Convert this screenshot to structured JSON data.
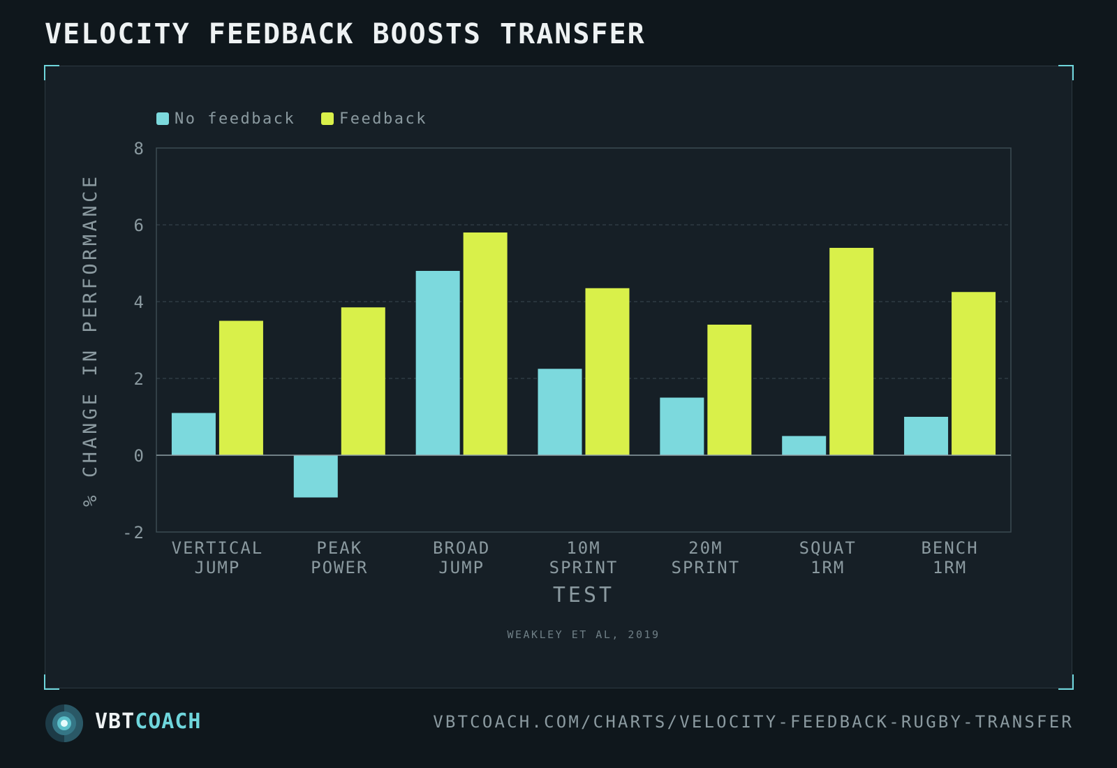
{
  "title": "VELOCITY FEEDBACK BOOSTS TRANSFER",
  "source": "WEAKLEY ET AL, 2019",
  "brand": {
    "part1": "VBT",
    "part2": "COACH"
  },
  "url": "VBTCOACH.COM/CHARTS/VELOCITY-FEEDBACK-RUGBY-TRANSFER",
  "colors": {
    "background": "#0f171c",
    "panel": "#161f26",
    "accent": "#6fd6dc",
    "no_feedback": "#7cd9dd",
    "feedback": "#d9f04a"
  },
  "chart_data": {
    "type": "bar",
    "title": "VELOCITY FEEDBACK BOOSTS TRANSFER",
    "xlabel": "TEST",
    "ylabel": "% CHANGE IN PERFORMANCE",
    "categories": [
      [
        "VERTICAL",
        "JUMP"
      ],
      [
        "PEAK",
        "POWER"
      ],
      [
        "BROAD",
        "JUMP"
      ],
      [
        "10M",
        "SPRINT"
      ],
      [
        "20M",
        "SPRINT"
      ],
      [
        "SQUAT",
        "1RM"
      ],
      [
        "BENCH",
        "1RM"
      ]
    ],
    "series": [
      {
        "name": "No feedback",
        "color": "#7cd9dd",
        "values": [
          1.1,
          -1.1,
          4.8,
          2.25,
          1.5,
          0.5,
          1.0
        ]
      },
      {
        "name": "Feedback",
        "color": "#d9f04a",
        "values": [
          3.5,
          3.85,
          5.8,
          4.35,
          3.4,
          5.4,
          4.25
        ]
      }
    ],
    "ylim": [
      -2,
      8
    ],
    "yticks": [
      -2,
      0,
      2,
      4,
      6,
      8
    ],
    "grid": true,
    "legend": "top-left"
  }
}
